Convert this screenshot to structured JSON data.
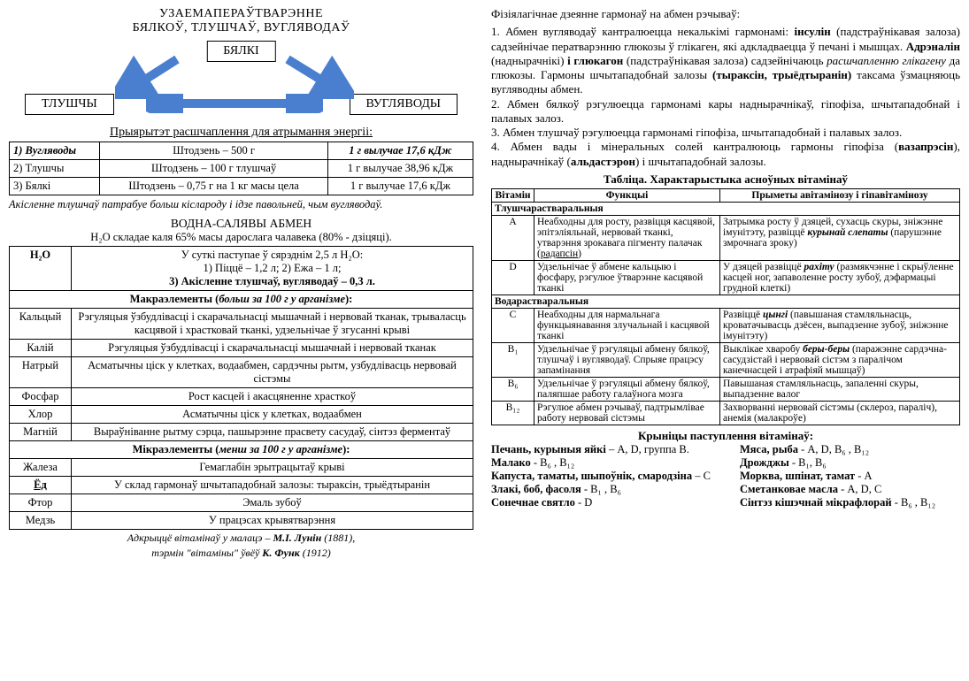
{
  "left": {
    "title1": "УЗАЕМАПЕРАЎТВАРЭННЕ",
    "title2": "БЯЛКОЎ, ТЛУШЧАЎ, ВУГЛЯВОДАЎ",
    "boxes": {
      "top": "БЯЛКІ",
      "left": "ТЛУШЧЫ",
      "right": "ВУГЛЯВОДЫ"
    },
    "arrow_color": "#4a7fd0",
    "priority": {
      "head": "Прыярытэт расшчаплення для атрымання энергіі:",
      "rows": [
        [
          "1) Вугляводы",
          "Штодзень – 500 г",
          "1 г вылучае 17,6 кДж"
        ],
        [
          "2) Тлушчы",
          "Штодзень – 100 г тлушчаў",
          "1 г вылучае 38,96 кДж"
        ],
        [
          "3) Бялкі",
          "Штодзень – 0,75 г на 1 кг масы цела",
          "1 г вылучае 17,6 кДж"
        ]
      ],
      "note": "Акісленне тлушчаў патрабуе больш кіслароду і ідзе павольней, чым вугляводаў."
    },
    "water": {
      "head": "ВОДНА-САЛЯВЫ АБМЕН",
      "sub": "H₂O складае каля 65% масы дарослага чалавека (80% - дзіцяці).",
      "h2o_label": "H₂O",
      "h2o_lines": [
        "У суткі паступае ў сярэднім 2,5 л H₂O:",
        "1) Піццё – 1,2 л; 2) Ежа – 1 л;",
        "3) Акісленне тлушчаў, вугляводаў – 0,3 л."
      ],
      "macro_head": "Макраэлементы (больш за 100 г у арганізме):",
      "macro": [
        [
          "Кальцый",
          "Рэгуляцыя ўзбудлівасці і скарачальнасці мышачнай і нервовай тканак, трываласць касцявой і храстковай тканкі, удзельнічае ў згусанні крыві"
        ],
        [
          "Калій",
          "Рэгуляцыя ўзбудлівасці і скарачальнасці мышачнай і нервовай тканак"
        ],
        [
          "Натрый",
          "Асматычны ціск у клетках, водаабмен, сардэчны рытм, узбудлівасць нервовай сістэмы"
        ],
        [
          "Фосфар",
          "Рост касцей і акасцяненне храсткоў"
        ],
        [
          "Хлор",
          "Асматычны ціск у клетках, водаабмен"
        ],
        [
          "Магній",
          "Выраўніванне рытму сэрца, пашырэнне прасвету сасудаў, сінтэз ферментаў"
        ]
      ],
      "micro_head": "Мікраэлементы (менш за 100 г у арганізме):",
      "micro": [
        [
          "Жалеза",
          "Гемаглабін эрытрацытаў крыві"
        ],
        [
          "Ёд",
          "У склад гармонаў шчытападобнай залозы: тыраксін, трыёдтыранін"
        ],
        [
          "Фтор",
          "Эмаль зубоў"
        ],
        [
          "Медзь",
          "У працэсах крывятварэння"
        ]
      ],
      "credit1": "Адкрыццё вітамінаў у малацэ – М.І. Лунін (1881),",
      "credit2": "тэрмін \"вітаміны\" ўвёў К. Функ (1912)"
    }
  },
  "right": {
    "intro": "Фізіялагічнае дзеянне гармонаў на абмен рэчываў:",
    "para": "1. Абмен вугляводаў кантралюецца некалькімі гармонамі: <b>інсулін</b> (падстраўнікавая залоза) садзейнічае ператварэнню глюкозы ў глікаген, які адкладваецца ў печані і мышцах. <b>Адрэналін</b> (наднырачнікі) <b>і глюкагон</b> (падстраўнікавая залоза) садзейнічаюць <i>расшчапленню глікагену</i> да глюкозы. Гармоны шчытападобнай залозы <b>(тыраксін, трыёдтыранін)</b> таксама ўзмацняюць вугляводны абмен.<br> 2. Абмен бялкоў рэгулюецца гармонамі кары наднырачнікаў, гіпофіза, шчытападобнай і палавых залоз.<br>3. Абмен тлушчаў рэгулюецца гармонамі гіпофіза, шчытападобнай і палавых залоз.<br>4. Абмен вады і мінеральных солей кантралююць гармоны гіпофіза (<b>вазапрэсін</b>), наднырачнікаў (<b>альдастэрон</b>) і шчытападобнай залозы.",
    "vit_title": "Табліца. Характарыстыка асноўных вітамінаў",
    "vit_header": [
      "Вітамін",
      "Функцыі",
      "Прыметы авітамінозу і гіпавітамінозу"
    ],
    "group1": "Тлушчарастваральныя",
    "vit1": [
      [
        "A",
        "Неабходны для росту, развіцця касцявой, эпітэліяльнай, нервовай тканкі, утварэння зрокавага пігменту палачак (<u>радапсін</u>)",
        "Затрымка росту ў дзяцей, сухасць скуры, зніжэнне імунітэту, развіццё <b><i>курынай слепаты</i></b> (парушэнне змрочнага зроку)"
      ],
      [
        "D",
        "Удзельнічае ў абмене кальцыю і фосфару, рэгулюе ўтварэнне касцявой тканкі",
        "У дзяцей развіццё <b><i>рахіту</i></b> (размякчэнне і скрыўленне касцей ног, запаволенне росту зубоў, дэфармацыі грудной клеткі)"
      ]
    ],
    "group2": "Водарастваральныя",
    "vit2": [
      [
        "C",
        "Неабходны для нармальнага функцыянавання злучальнай і касцявой тканкі",
        "Развіццё <b><i>цынгі</i></b> (павышаная стамляльнасць, кроватачывасць дзёсен, выпадзенне зубоў, зніжэнне імунітэту)"
      ],
      [
        "B₁",
        "Удзельнічае ў рэгуляцыі абмену бялкоў, тлушчаў і вугляводаў. Спрыяе працэсу запамінання",
        "Выклікае хваробу <b><i>беры-беры</i></b> (паражэнне сардэчна-сасудзістай і нервовай сістэм з паралічом канечнасцей і атрафіяй мышцаў)"
      ],
      [
        "B₆",
        "Удзельнічае ў рэгуляцыі абмену бялкоў, паляпшае работу галаўнога мозга",
        "Павышаная стамляльнасць, запаленні скуры, выпадзенне валог"
      ],
      [
        "B₁₂",
        "Рэгулюе абмен рэчываў, падтрымлівае работу нервовай сістэмы",
        "Захворванні нервовай сістэмы (склероз, параліч), анемія (малакроўе)"
      ]
    ],
    "src_title": "Крыніцы паступлення вітамінаў:",
    "src": [
      [
        "Печань, курыныя яйкі – A, D, группа B.",
        "Мяса, рыба -  A, D, B₆ , B₁₂"
      ],
      [
        "Малако - B₆ , B₁₂",
        "Дрожджы - B₁, B₆"
      ],
      [
        "Капуста, таматы, шыпоўнік, смародзіна – C",
        "Морква, шпінат, тамат - A"
      ],
      [
        "Злакі, боб, фасоля -  B₁ , B₆",
        "Сметанковае масла - A, D, C"
      ],
      [
        "Сонечнае святло - D",
        "Сінтэз кішэчнай мікрафлорай - B₆ , B₁₂"
      ]
    ]
  }
}
